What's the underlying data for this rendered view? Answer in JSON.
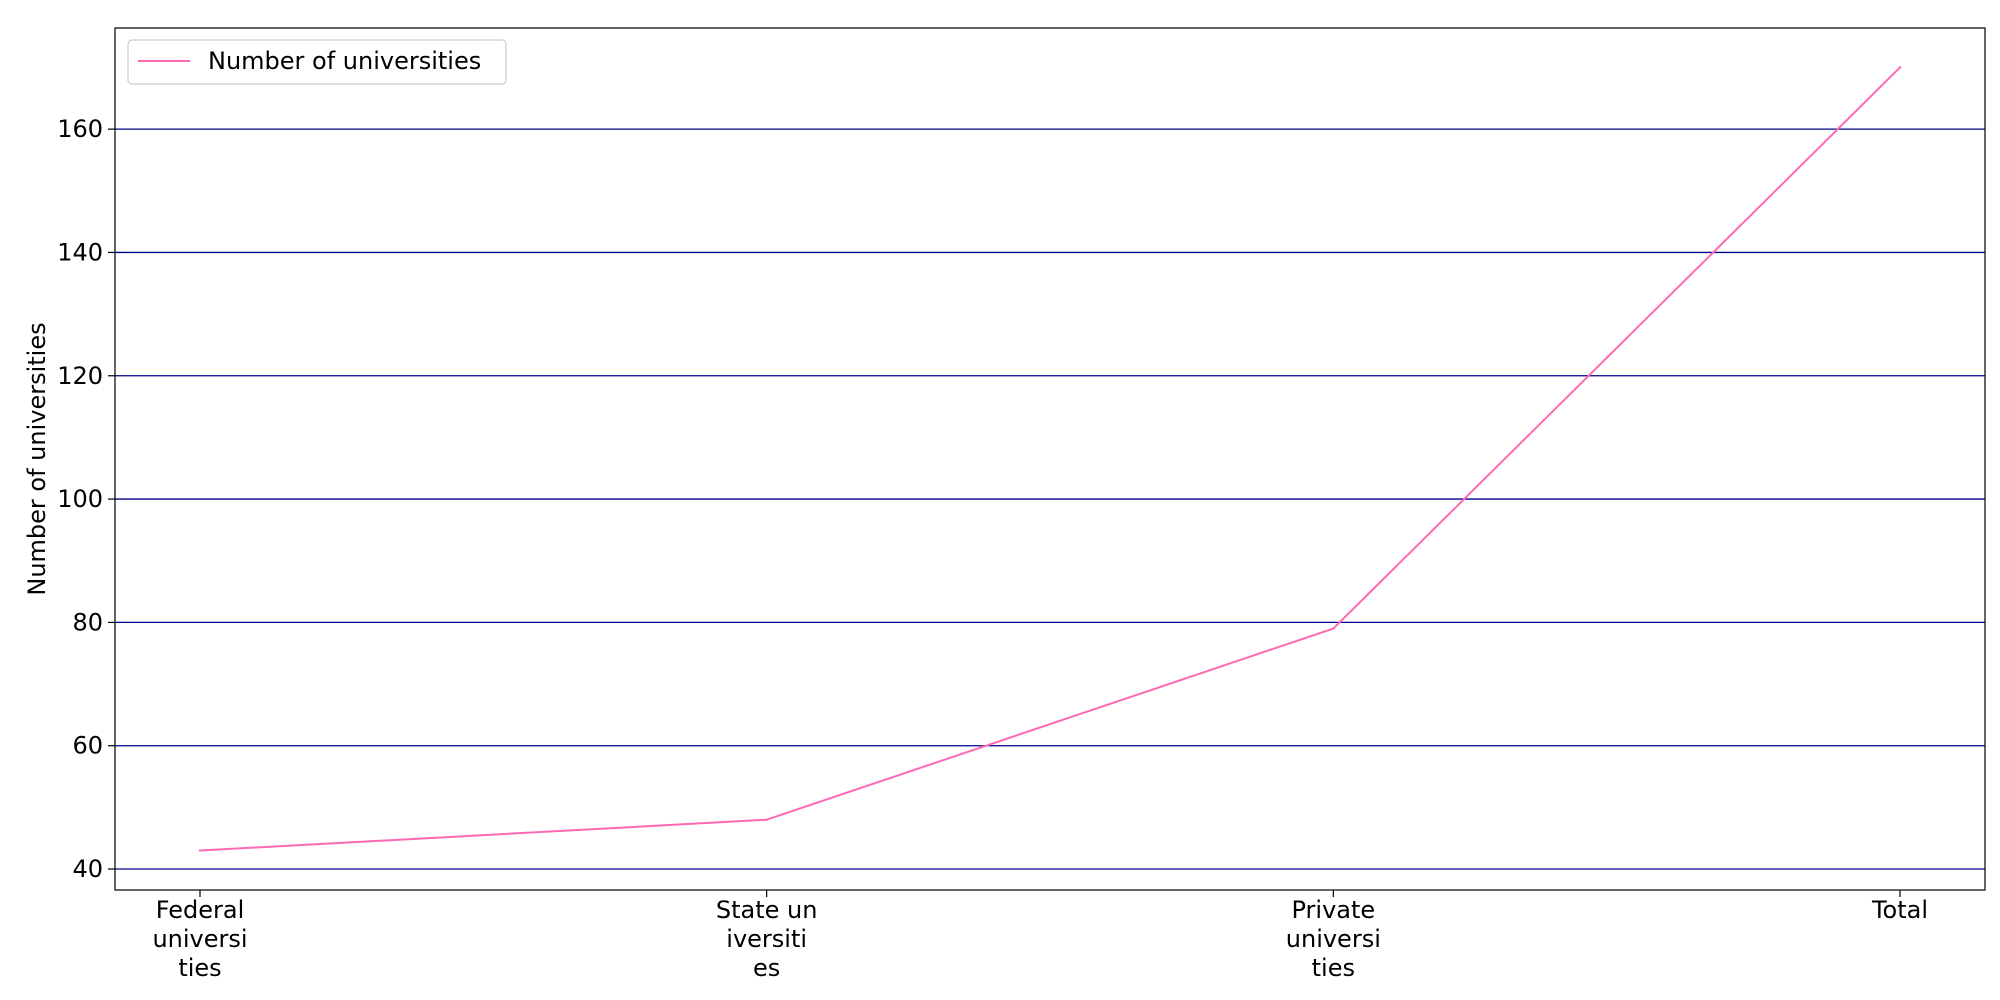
{
  "chart_data": {
    "type": "line",
    "categories": [
      [
        "Federal",
        "universi",
        "ties"
      ],
      [
        "State un",
        "iversiti",
        "es"
      ],
      [
        "Private",
        "universi",
        "ties"
      ],
      [
        "Total"
      ]
    ],
    "series": [
      {
        "name": "Number of universities",
        "values": [
          43,
          48,
          79,
          170
        ],
        "color": "#ff69b4"
      }
    ],
    "ylabel": "Number of universities",
    "yticks": [
      40,
      60,
      80,
      100,
      120,
      140,
      160
    ],
    "ylim": [
      36.6,
      176.4
    ],
    "grid": "horizontal",
    "grid_color": "#00008b",
    "legend_position": "top-left"
  }
}
